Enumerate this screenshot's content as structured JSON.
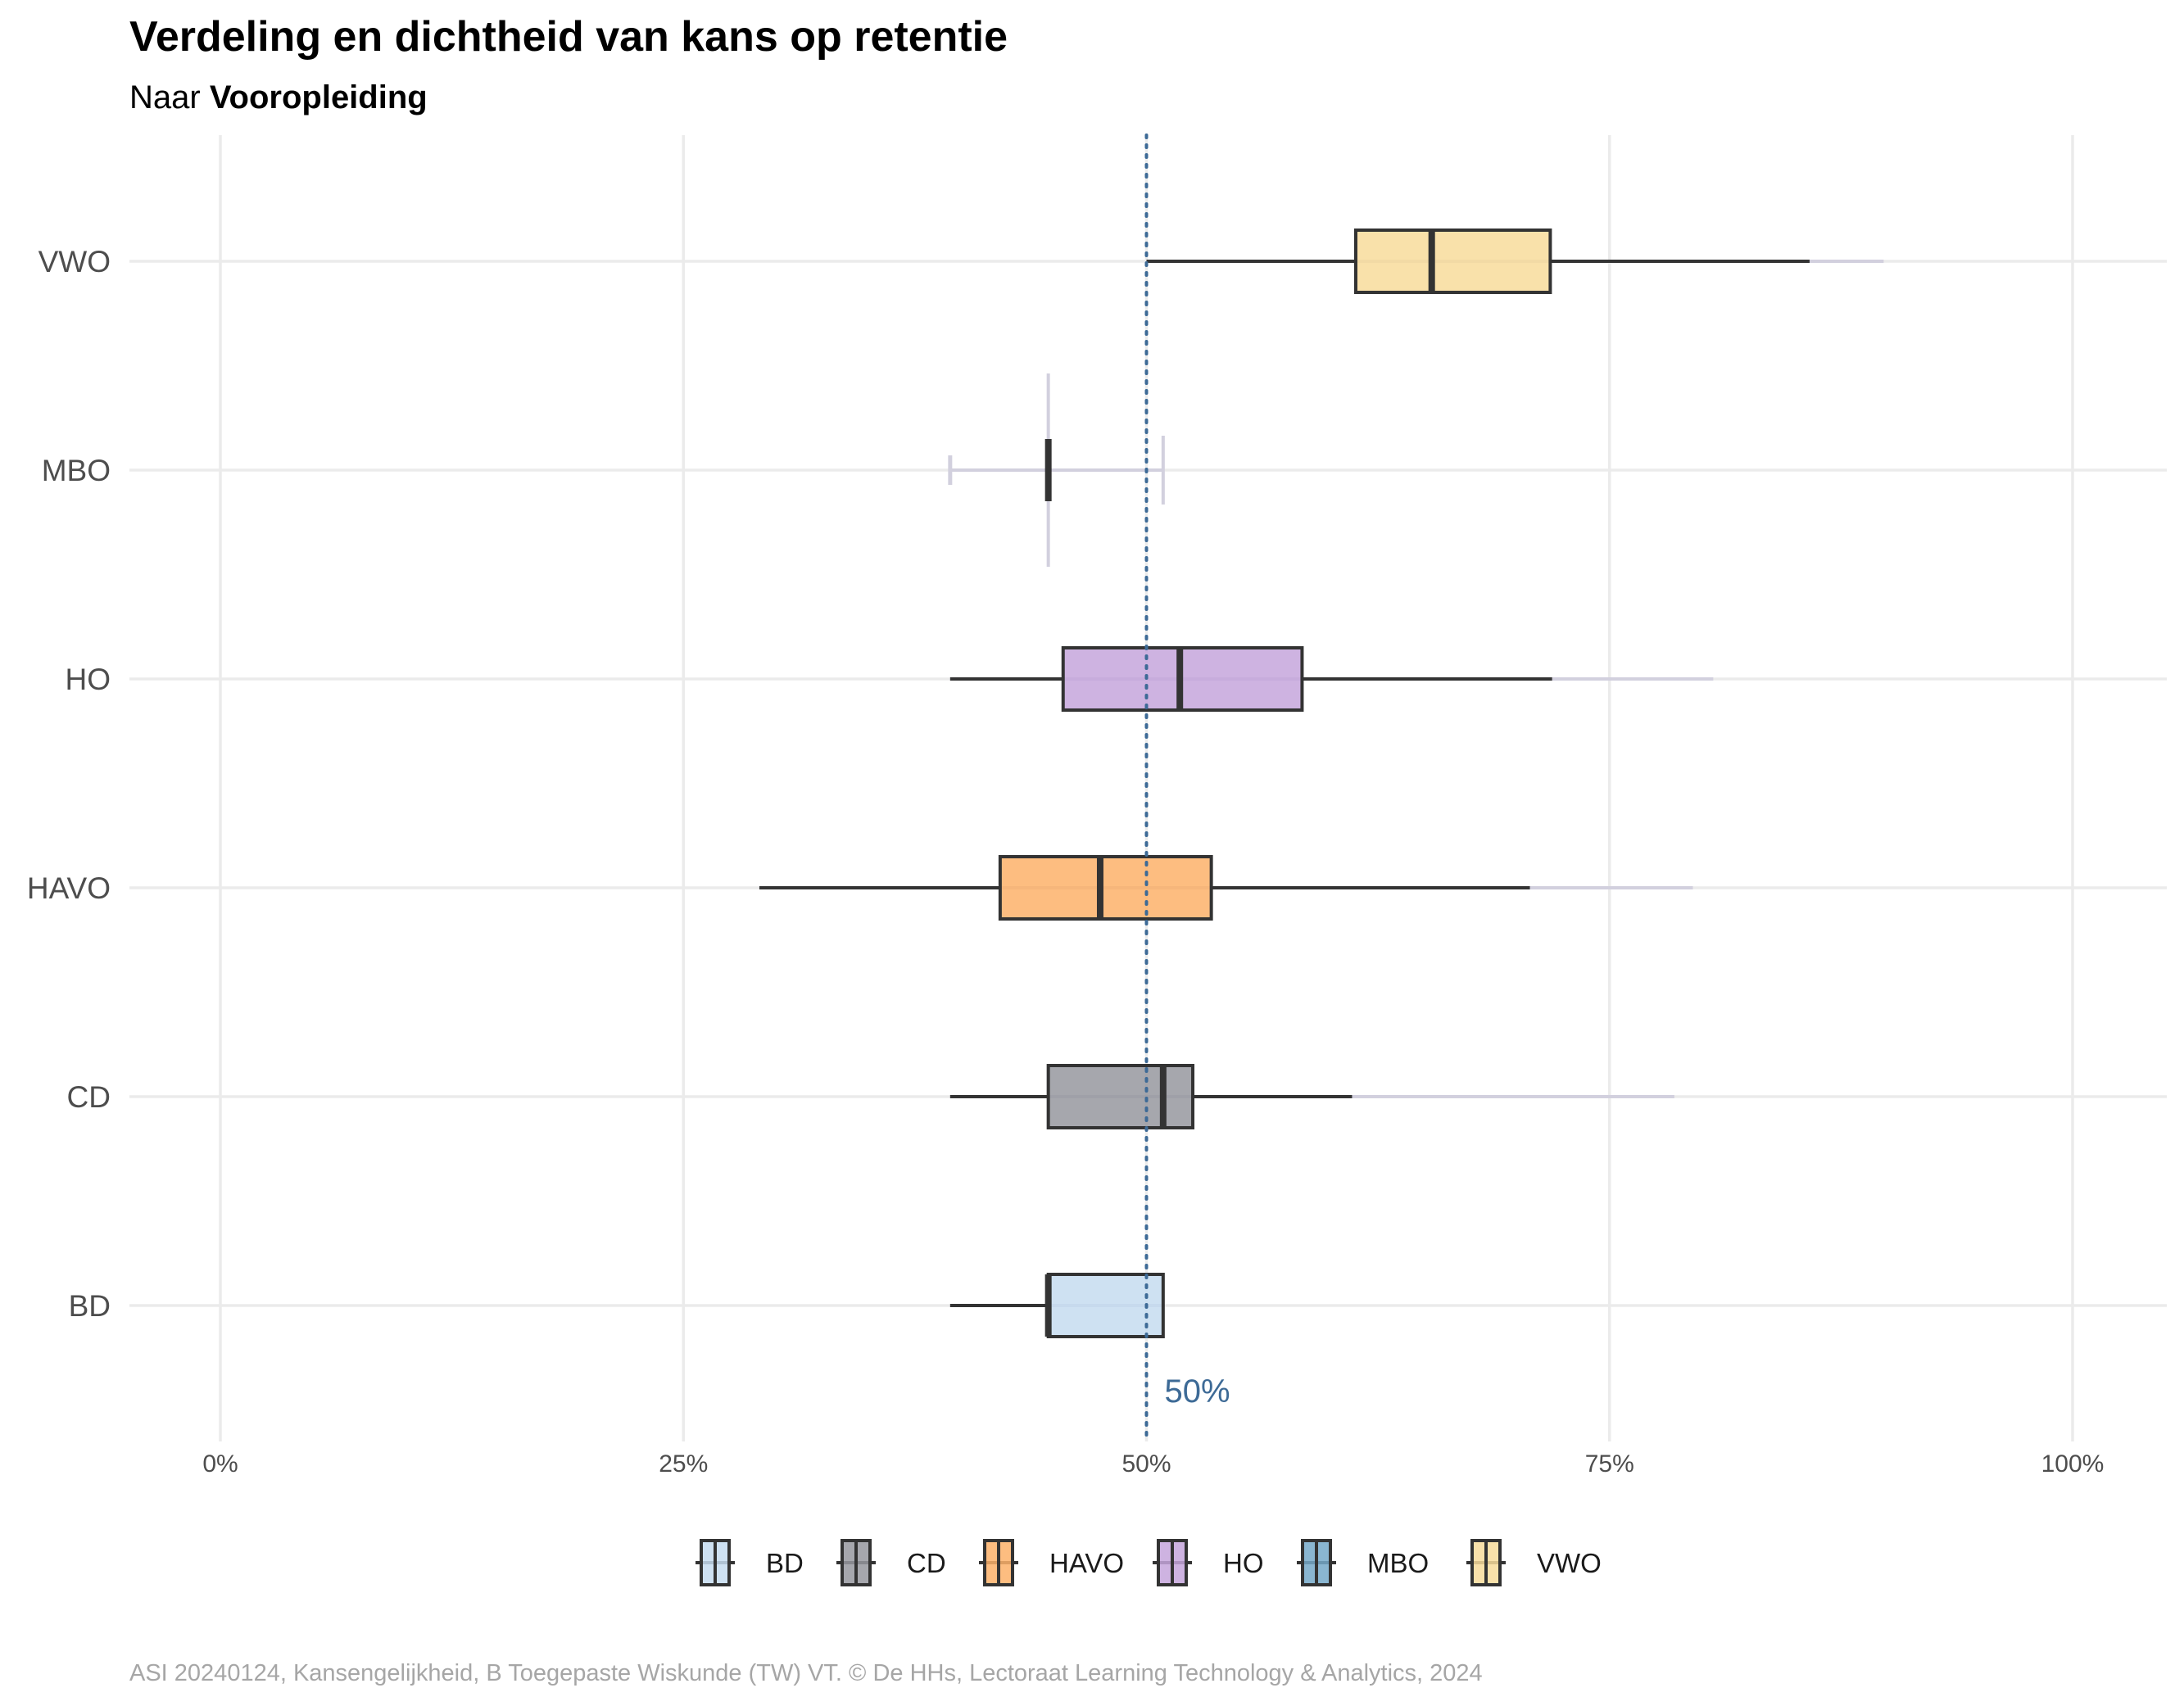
{
  "chart_data": {
    "type": "boxplot",
    "title": "Verdeling en dichtheid van kans op retentie",
    "subtitle_prefix": "Naar ",
    "subtitle_bold": "Vooropleiding",
    "caption": "ASI 20240124, Kansengelijkheid, B Toegepaste Wiskunde (TW) VT. © De HHs, Lectoraat Learning Technology & Analytics, 2024",
    "xlim": [
      -0.05,
      1.05
    ],
    "x_ticks": [
      0,
      0.25,
      0.5,
      0.75,
      1.0
    ],
    "x_tick_labels": [
      "0%",
      "25%",
      "50%",
      "75%",
      "100%"
    ],
    "reference_line": {
      "value": 0.5,
      "label": "50%",
      "color": "#3d6a96"
    },
    "grid": true,
    "legend_position": "bottom",
    "categories": [
      "BD",
      "CD",
      "HAVO",
      "HO",
      "MBO",
      "VWO"
    ],
    "series": [
      {
        "name": "BD",
        "color": "#c6dcf0",
        "min": 0.394,
        "q1": 0.447,
        "median": 0.447,
        "q3": 0.509,
        "max": 0.509,
        "density_min": 0.394,
        "density_max": 0.509
      },
      {
        "name": "CD",
        "color": "#97989f",
        "min": 0.394,
        "q1": 0.447,
        "median": 0.509,
        "q3": 0.525,
        "max": 0.611,
        "density_min": 0.394,
        "density_max": 0.785
      },
      {
        "name": "HAVO",
        "color": "#fdb26a",
        "min": 0.291,
        "q1": 0.421,
        "median": 0.475,
        "q3": 0.535,
        "max": 0.707,
        "density_min": 0.291,
        "density_max": 0.795
      },
      {
        "name": "HO",
        "color": "#c5a6dc",
        "min": 0.394,
        "q1": 0.455,
        "median": 0.518,
        "q3": 0.584,
        "max": 0.719,
        "density_min": 0.394,
        "density_max": 0.806
      },
      {
        "name": "MBO",
        "color": "#76a9c9",
        "min": 0.447,
        "q1": 0.447,
        "median": 0.447,
        "q3": 0.447,
        "max": 0.447,
        "density_min": 0.394,
        "density_max": 0.509
      },
      {
        "name": "VWO",
        "color": "#f8dc9b",
        "min": 0.5,
        "q1": 0.613,
        "median": 0.654,
        "q3": 0.718,
        "max": 0.858,
        "density_min": 0.5,
        "density_max": 0.898
      }
    ]
  }
}
